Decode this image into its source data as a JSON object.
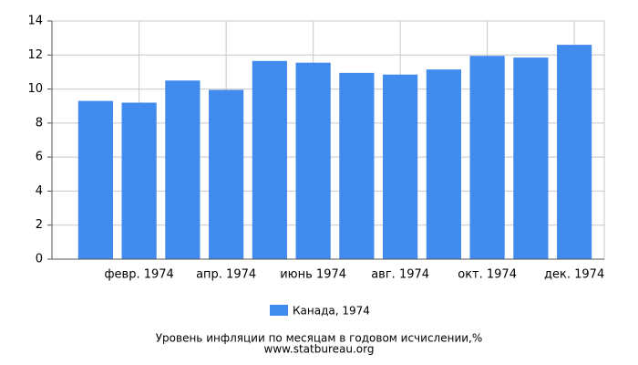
{
  "chart_data": {
    "type": "bar",
    "title": "Уровень инфляции по месяцам в годовом исчислении,%",
    "subtitle": "www.statbureau.org",
    "categories": [
      null,
      "февр. 1974",
      null,
      "апр. 1974",
      null,
      "июнь 1974",
      null,
      "авг. 1974",
      null,
      "окт. 1974",
      null,
      "дек. 1974"
    ],
    "series": [
      {
        "name": "Канада, 1974",
        "color": "#428bee",
        "values": [
          9.3,
          9.2,
          10.5,
          9.95,
          11.65,
          11.55,
          10.95,
          10.85,
          11.15,
          11.95,
          11.85,
          12.6
        ]
      }
    ],
    "ylim": [
      0,
      14
    ],
    "yticks": [
      0,
      2,
      4,
      6,
      8,
      10,
      12,
      14
    ],
    "grid": true
  }
}
